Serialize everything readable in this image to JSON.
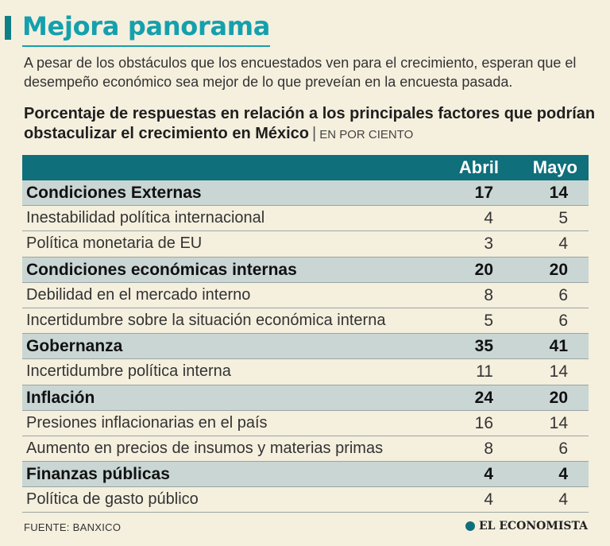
{
  "title": "Mejora panorama",
  "subtitle": "A pesar de los obstáculos que los encuestados ven para el crecimiento, esperan que el desempeño económico sea mejor de lo que preveían en la encuesta pasada.",
  "chart_heading": "Porcentaje de respuestas en relación a los principales factores que podrían obstaculizar el crecimiento en México",
  "chart_unit": "EN POR CIENTO",
  "chart_data": {
    "type": "table",
    "title": "Porcentaje de respuestas en relación a los principales factores que podrían obstaculizar el crecimiento en México",
    "columns": [
      "Abril",
      "Mayo"
    ],
    "rows": [
      {
        "label": "Condiciones Externas",
        "category": true,
        "values": [
          17,
          14
        ]
      },
      {
        "label": "Inestabilidad política internacional",
        "category": false,
        "values": [
          4,
          5
        ]
      },
      {
        "label": "Política monetaria de EU",
        "category": false,
        "values": [
          3,
          4
        ]
      },
      {
        "label": "Condiciones económicas internas",
        "category": true,
        "values": [
          20,
          20
        ]
      },
      {
        "label": "Debilidad en el mercado interno",
        "category": false,
        "values": [
          8,
          6
        ]
      },
      {
        "label": "Incertidumbre sobre la situación económica interna",
        "category": false,
        "values": [
          5,
          6
        ]
      },
      {
        "label": "Gobernanza",
        "category": true,
        "values": [
          35,
          41
        ]
      },
      {
        "label": "Incertidumbre política interna",
        "category": false,
        "values": [
          11,
          14
        ]
      },
      {
        "label": "Inflación",
        "category": true,
        "values": [
          24,
          20
        ]
      },
      {
        "label": "Presiones inflacionarias en el país",
        "category": false,
        "values": [
          16,
          14
        ]
      },
      {
        "label": "Aumento en precios de insumos y materias primas",
        "category": false,
        "values": [
          8,
          6
        ]
      },
      {
        "label": "Finanzas públicas",
        "category": true,
        "values": [
          4,
          4
        ]
      },
      {
        "label": "Política de gasto público",
        "category": false,
        "values": [
          4,
          4
        ]
      }
    ]
  },
  "source": "FUENTE: BANXICO",
  "brand": "EL ECONOMISTA",
  "colors": {
    "accent": "#14a0ad",
    "header": "#0f6f7b",
    "category_row": "#c9d6d3",
    "background": "#f5efde"
  }
}
